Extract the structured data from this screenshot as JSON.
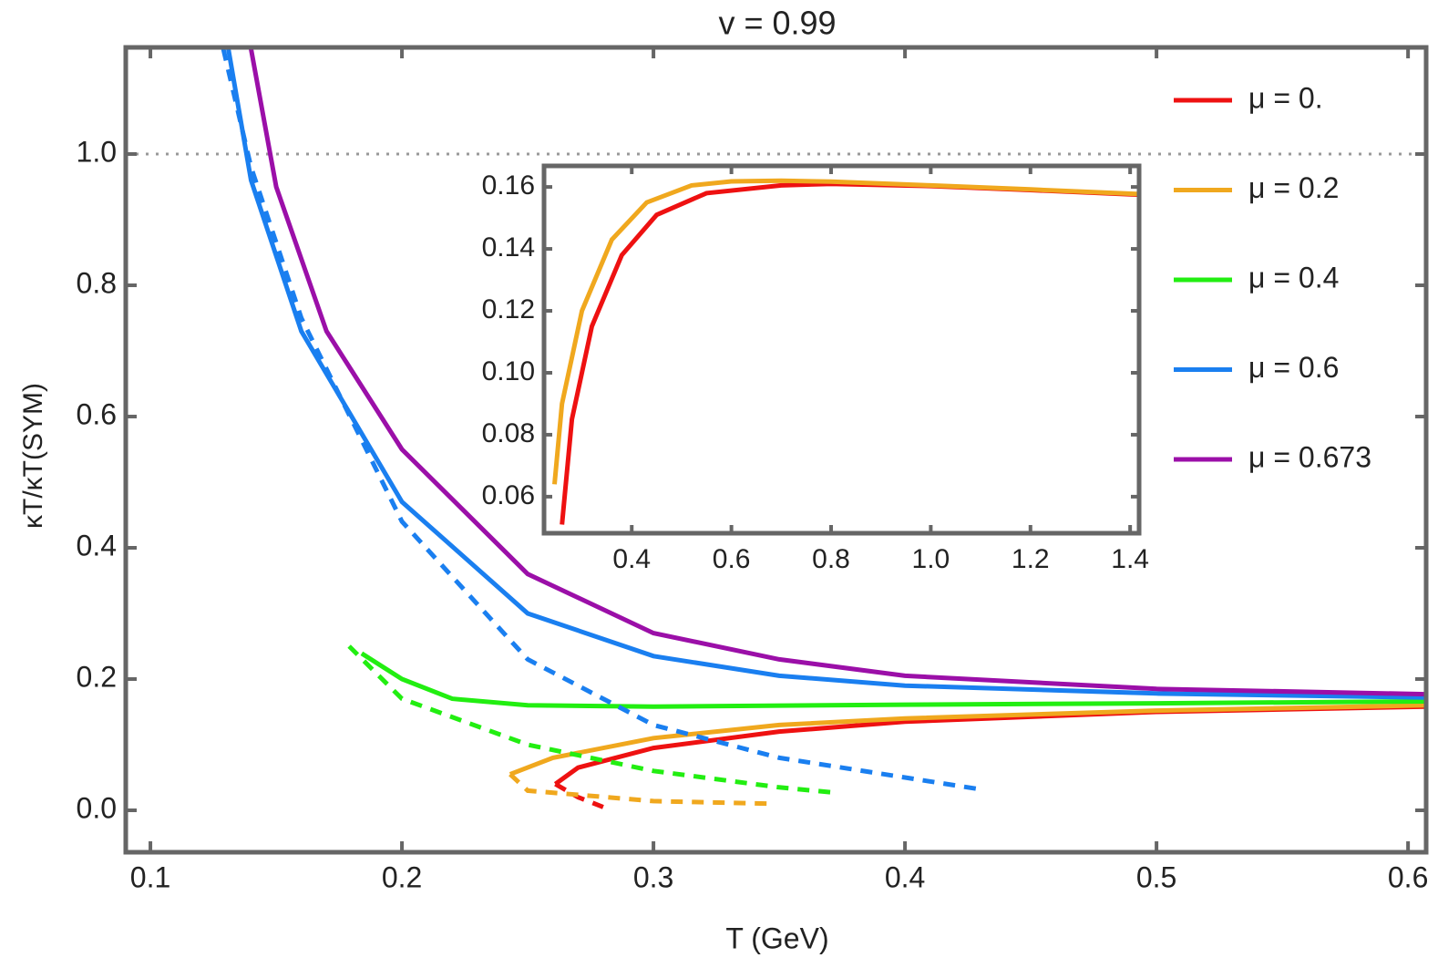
{
  "chart_data": [
    {
      "type": "line",
      "title": "v = 0.99",
      "x_label": "T (GeV)",
      "y_label": "κT/κT(SYM)",
      "xlim": [
        0.0902,
        0.6072
      ],
      "ylim": [
        -0.0639,
        1.1625
      ],
      "xticks": [
        0.1,
        0.2,
        0.3,
        0.4,
        0.5,
        0.6
      ],
      "yticks": [
        {
          "value": 0,
          "label": "0.0"
        },
        0.2,
        0.4,
        0.6,
        0.8,
        {
          "value": 1,
          "label": "1.0"
        }
      ],
      "reference_line": 1,
      "legend": "right",
      "series": [
        {
          "name": "μ = 0.",
          "color": "#ee1111",
          "branches": [
            {
              "style": "solid",
              "x": [
                0.261,
                0.27,
                0.3,
                0.35,
                0.4,
                0.5,
                0.607
              ],
              "y": [
                0.04,
                0.065,
                0.095,
                0.12,
                0.135,
                0.15,
                0.158
              ]
            },
            {
              "style": "dashed",
              "x": [
                0.261,
                0.27,
                0.28
              ],
              "y": [
                0.04,
                0.02,
                0.005
              ]
            }
          ]
        },
        {
          "name": "μ = 0.2",
          "color": "#f0a81e",
          "branches": [
            {
              "style": "solid",
              "x": [
                0.243,
                0.26,
                0.3,
                0.35,
                0.4,
                0.5,
                0.607
              ],
              "y": [
                0.055,
                0.08,
                0.11,
                0.13,
                0.14,
                0.152,
                0.16
              ]
            },
            {
              "style": "dashed",
              "x": [
                0.243,
                0.25,
                0.3,
                0.348
              ],
              "y": [
                0.055,
                0.03,
                0.014,
                0.01
              ]
            }
          ]
        },
        {
          "name": "μ = 0.4",
          "color": "#22ee11",
          "branches": [
            {
              "style": "solid",
              "x": [
                0.184,
                0.2,
                0.22,
                0.25,
                0.3,
                0.4,
                0.5,
                0.607
              ],
              "y": [
                0.239,
                0.2,
                0.17,
                0.16,
                0.158,
                0.161,
                0.163,
                0.166
              ]
            },
            {
              "style": "dashed",
              "x": [
                0.179,
                0.2,
                0.25,
                0.3,
                0.35,
                0.372
              ],
              "y": [
                0.25,
                0.17,
                0.1,
                0.06,
                0.035,
                0.027
              ]
            }
          ]
        },
        {
          "name": "μ = 0.6",
          "color": "#1a7ff0",
          "branches": [
            {
              "style": "solid",
              "x": [
                0.131,
                0.14,
                0.16,
                0.2,
                0.25,
                0.3,
                0.35,
                0.4,
                0.5,
                0.607
              ],
              "y": [
                1.16,
                0.96,
                0.73,
                0.47,
                0.3,
                0.235,
                0.205,
                0.19,
                0.178,
                0.172
              ]
            },
            {
              "style": "dashed",
              "x": [
                0.129,
                0.14,
                0.16,
                0.2,
                0.25,
                0.3,
                0.35,
                0.4,
                0.43
              ],
              "y": [
                1.16,
                0.98,
                0.75,
                0.44,
                0.23,
                0.13,
                0.08,
                0.05,
                0.032
              ]
            }
          ]
        },
        {
          "name": "μ = 0.673",
          "color": "#9b0fa8",
          "branches": [
            {
              "style": "solid",
              "x": [
                0.14,
                0.15,
                0.17,
                0.2,
                0.25,
                0.3,
                0.35,
                0.4,
                0.5,
                0.607
              ],
              "y": [
                1.16,
                0.95,
                0.73,
                0.55,
                0.36,
                0.27,
                0.23,
                0.205,
                0.185,
                0.177
              ]
            }
          ]
        }
      ]
    },
    {
      "type": "line",
      "xlim": [
        0.224,
        1.418
      ],
      "ylim": [
        0.0482,
        0.1668
      ],
      "xticks": [
        0.4,
        0.6,
        0.8,
        {
          "value": 1,
          "label": "1.0"
        },
        1.2,
        1.4
      ],
      "yticks": [
        0.06,
        0.08,
        {
          "value": 0.1,
          "label": "0.10"
        },
        0.12,
        0.14,
        0.16
      ],
      "series": [
        {
          "color": "#ee1111",
          "branches": [
            {
              "style": "solid",
              "x": [
                0.26,
                0.28,
                0.32,
                0.38,
                0.45,
                0.55,
                0.7,
                0.8,
                1.0,
                1.2,
                1.418
              ],
              "y": [
                0.051,
                0.085,
                0.115,
                0.138,
                0.151,
                0.158,
                0.1605,
                0.161,
                0.1603,
                0.159,
                0.1575
              ]
            }
          ]
        },
        {
          "color": "#f0a81e",
          "branches": [
            {
              "style": "solid",
              "x": [
                0.245,
                0.26,
                0.3,
                0.36,
                0.43,
                0.52,
                0.6,
                0.7,
                0.8,
                1.0,
                1.2,
                1.418
              ],
              "y": [
                0.064,
                0.09,
                0.12,
                0.143,
                0.155,
                0.1605,
                0.1618,
                0.162,
                0.1617,
                0.1605,
                0.1592,
                0.1577
              ]
            }
          ]
        }
      ]
    }
  ]
}
